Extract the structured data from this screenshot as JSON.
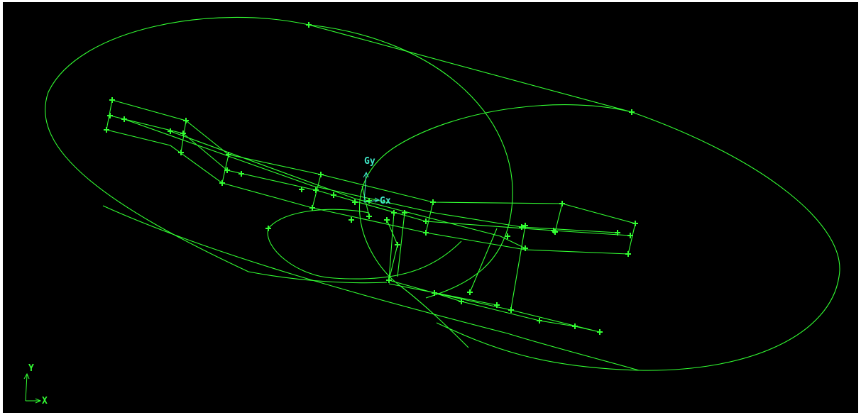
{
  "viewport": {
    "origin_labels": {
      "gy": "Gy",
      "gx": "Gx"
    },
    "triad_labels": {
      "y": "Y",
      "x": "X"
    }
  }
}
